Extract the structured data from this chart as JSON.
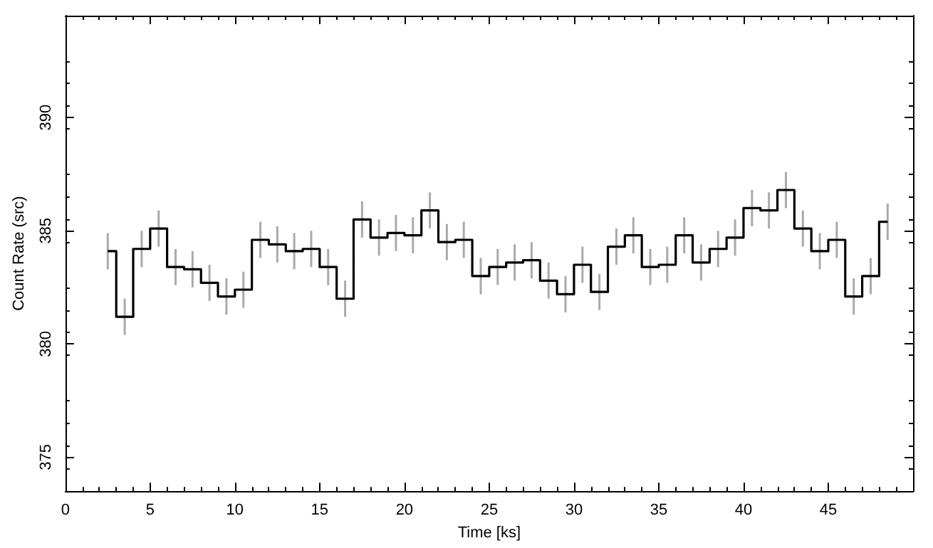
{
  "chart_data": {
    "type": "step",
    "xlabel": "Time [ks]",
    "ylabel": "Count Rate (src)",
    "x": [
      2.5,
      3.5,
      4.5,
      5.5,
      6.5,
      7.5,
      8.5,
      9.5,
      10.5,
      11.5,
      12.5,
      13.5,
      14.5,
      15.5,
      16.5,
      17.5,
      18.5,
      19.5,
      20.5,
      21.5,
      22.5,
      23.5,
      24.5,
      25.5,
      26.5,
      27.5,
      28.5,
      29.5,
      30.5,
      31.5,
      32.5,
      33.5,
      34.5,
      35.5,
      36.5,
      37.5,
      38.5,
      39.5,
      40.5,
      41.5,
      42.5,
      43.5,
      44.5,
      45.5,
      46.5,
      47.5,
      48.5
    ],
    "series": [
      {
        "color": "#000000",
        "values": [
          384.1,
          381.2,
          384.2,
          385.1,
          383.4,
          383.3,
          382.7,
          382.1,
          382.4,
          384.6,
          384.4,
          384.1,
          384.2,
          383.4,
          382.0,
          385.5,
          384.7,
          384.9,
          384.8,
          385.9,
          384.5,
          384.6,
          383.0,
          383.4,
          383.6,
          383.7,
          382.8,
          382.2,
          383.5,
          382.3,
          384.3,
          384.8,
          383.4,
          383.5,
          384.8,
          383.6,
          384.2,
          384.7,
          386.0,
          385.9,
          386.8,
          385.1,
          384.1,
          384.6,
          382.1,
          383.0,
          385.4
        ],
        "errors": [
          0.8,
          0.8,
          0.8,
          0.8,
          0.8,
          0.8,
          0.8,
          0.8,
          0.8,
          0.8,
          0.8,
          0.8,
          0.8,
          0.8,
          0.8,
          0.8,
          0.8,
          0.8,
          0.8,
          0.8,
          0.8,
          0.8,
          0.8,
          0.8,
          0.8,
          0.8,
          0.8,
          0.8,
          0.8,
          0.8,
          0.8,
          0.8,
          0.8,
          0.8,
          0.8,
          0.8,
          0.8,
          0.8,
          0.8,
          0.8,
          0.8,
          0.8,
          0.8,
          0.8,
          0.8,
          0.8,
          0.8
        ]
      }
    ],
    "xlim": [
      0,
      50
    ],
    "xticks": [
      0,
      5,
      10,
      15,
      20,
      25,
      30,
      35,
      40,
      45
    ],
    "ylim": [
      373.5,
      394.5
    ],
    "yticks": [
      375,
      380,
      385,
      390
    ],
    "grid": false,
    "marker": "none",
    "line_style": "solid"
  }
}
